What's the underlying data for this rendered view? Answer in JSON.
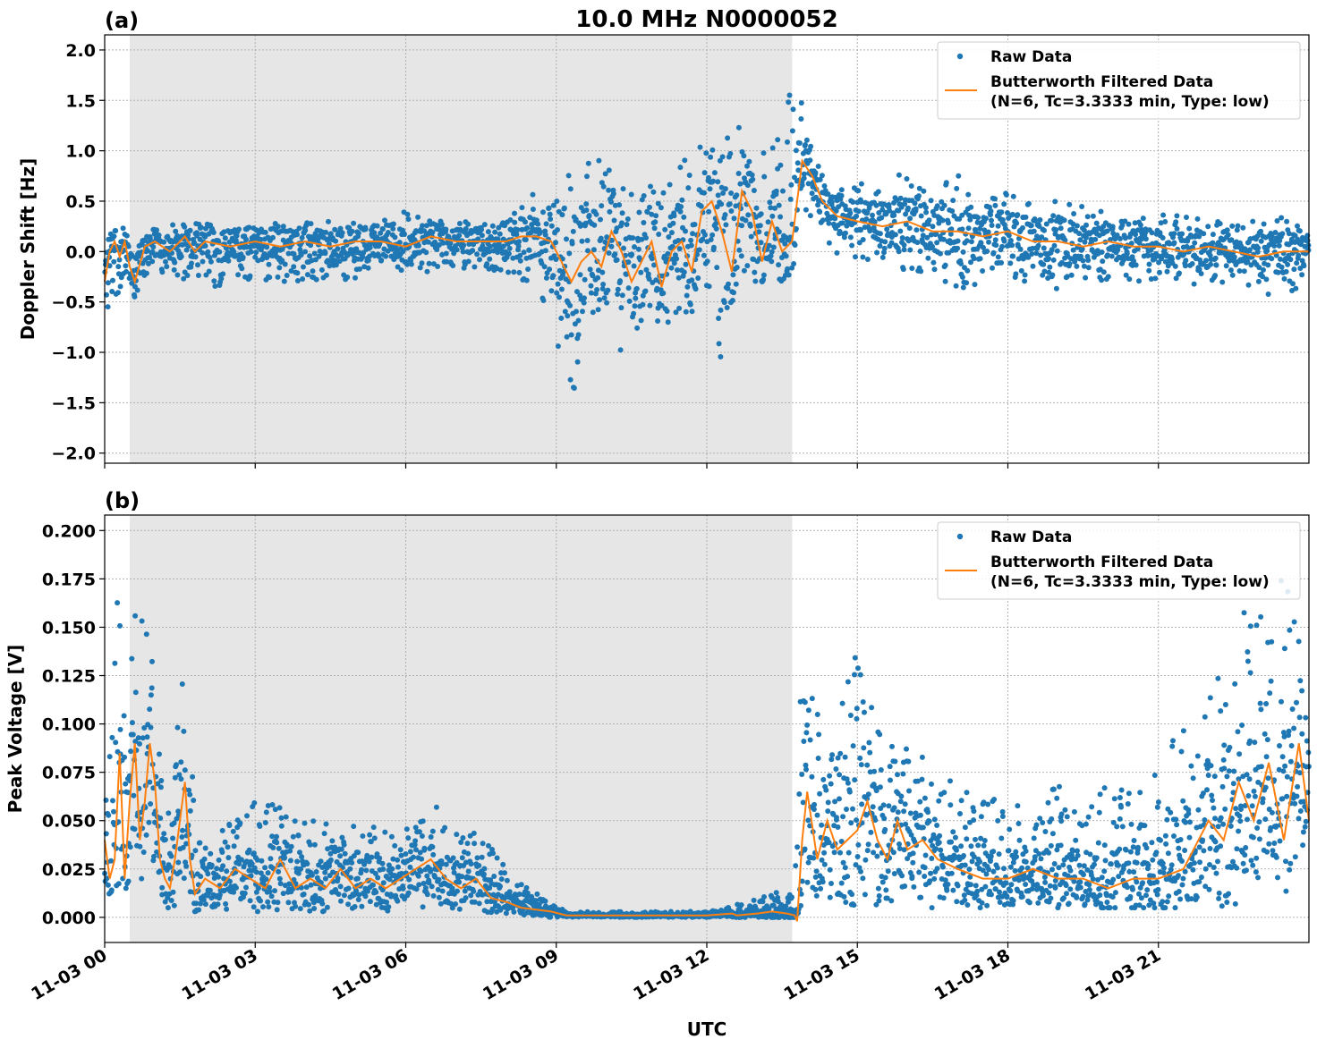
{
  "figure": {
    "title": "10.0 MHz N0000052",
    "xlabel": "UTC",
    "x_ticks": [
      "11-03 00",
      "11-03 03",
      "11-03 06",
      "11-03 09",
      "11-03 12",
      "11-03 15",
      "11-03 18",
      "11-03 21"
    ],
    "shaded_interval_hours": [
      0.5,
      13.7
    ],
    "colors": {
      "raw": "#1f77b4",
      "filtered": "#ff7f0e",
      "shade": "#e6e6e6"
    },
    "legend": {
      "raw_label": "Raw Data",
      "filtered_label_line1": "Butterworth Filtered Data",
      "filtered_label_line2": "(N=6, Tc=3.3333 min, Type: low)",
      "placement": "upper right"
    }
  },
  "chart_data": [
    {
      "type": "scatter",
      "panel_label": "(a)",
      "ylabel": "Doppler Shift [Hz]",
      "xlim_hours": [
        0,
        24
      ],
      "ylim": [
        -2.1,
        2.15
      ],
      "y_ticks": [
        {
          "value": 2.0,
          "label": "2.0"
        },
        {
          "value": 1.5,
          "label": "1.5"
        },
        {
          "value": 1.0,
          "label": "1.0"
        },
        {
          "value": 0.5,
          "label": "0.5"
        },
        {
          "value": 0.0,
          "label": "0.0"
        },
        {
          "value": -0.5,
          "label": "−0.5"
        },
        {
          "value": -1.0,
          "label": "−1.0"
        },
        {
          "value": -1.5,
          "label": "−1.5"
        },
        {
          "value": -2.0,
          "label": "−2.0"
        }
      ],
      "grid": true,
      "series": [
        {
          "name": "Butterworth Filtered Data",
          "kind": "line",
          "x_hours": [
            0,
            0.1,
            0.2,
            0.3,
            0.4,
            0.5,
            0.6,
            0.8,
            1.0,
            1.3,
            1.6,
            1.8,
            2.0,
            2.5,
            3.0,
            3.5,
            4.0,
            4.5,
            5.0,
            5.5,
            6.0,
            6.5,
            7.0,
            7.5,
            8.0,
            8.3,
            8.6,
            8.9,
            9.1,
            9.3,
            9.5,
            9.7,
            9.9,
            10.1,
            10.3,
            10.5,
            10.7,
            10.9,
            11.1,
            11.3,
            11.5,
            11.7,
            11.9,
            12.1,
            12.3,
            12.5,
            12.7,
            12.9,
            13.1,
            13.3,
            13.5,
            13.7,
            13.9,
            14.1,
            14.3,
            14.6,
            15.0,
            15.5,
            16.0,
            16.5,
            17.0,
            17.5,
            18.0,
            18.5,
            19.0,
            19.5,
            20.0,
            20.5,
            21.0,
            21.5,
            22.0,
            22.5,
            23.0,
            23.5,
            24.0
          ],
          "y": [
            -0.3,
            0.0,
            0.1,
            -0.05,
            0.1,
            -0.15,
            -0.3,
            0.05,
            0.1,
            0.0,
            0.15,
            0.0,
            0.1,
            0.05,
            0.1,
            0.05,
            0.1,
            0.05,
            0.1,
            0.1,
            0.05,
            0.15,
            0.1,
            0.1,
            0.1,
            0.15,
            0.15,
            0.1,
            -0.1,
            -0.3,
            -0.1,
            0.0,
            -0.15,
            0.2,
            0.0,
            -0.3,
            -0.1,
            0.1,
            -0.35,
            0.0,
            0.1,
            -0.2,
            0.4,
            0.5,
            0.2,
            -0.2,
            0.6,
            0.4,
            -0.1,
            0.3,
            0.0,
            0.1,
            0.9,
            0.75,
            0.5,
            0.35,
            0.3,
            0.25,
            0.3,
            0.2,
            0.2,
            0.15,
            0.2,
            0.1,
            0.1,
            0.05,
            0.1,
            0.05,
            0.05,
            0.0,
            0.05,
            0.0,
            -0.05,
            0.0,
            0.0
          ]
        },
        {
          "name": "Raw Data",
          "kind": "scatter",
          "x_hours": [
            0.0,
            0.1,
            0.3,
            0.5,
            0.6,
            1.0,
            1.5,
            2.0,
            2.5,
            3.0,
            3.5,
            4.0,
            4.5,
            5.0,
            5.5,
            6.0,
            6.5,
            7.0,
            7.5,
            8.0,
            8.3,
            8.6,
            8.9,
            9.1,
            9.3,
            9.5,
            9.7,
            9.9,
            10.1,
            10.3,
            10.5,
            10.7,
            10.9,
            11.1,
            11.3,
            11.5,
            11.7,
            11.9,
            12.1,
            12.3,
            12.5,
            12.7,
            12.9,
            13.1,
            13.3,
            13.5,
            13.7,
            13.9,
            14.1,
            14.5,
            15.0,
            15.5,
            16.0,
            16.5,
            17.0,
            17.5,
            18.0,
            18.5,
            19.0,
            19.5,
            20.0,
            20.5,
            21.0,
            21.5,
            22.0,
            22.5,
            23.0,
            23.5,
            24.0
          ],
          "y_low": [
            -0.9,
            -0.5,
            -0.4,
            -0.45,
            -0.5,
            -0.2,
            -0.3,
            -0.4,
            -0.3,
            -0.3,
            -0.3,
            -0.3,
            -0.3,
            -0.3,
            -0.2,
            -0.2,
            -0.2,
            -0.15,
            -0.2,
            -0.2,
            -0.3,
            -0.3,
            -0.7,
            -1.2,
            -1.6,
            -1.0,
            -0.8,
            -1.0,
            -0.7,
            -1.1,
            -0.9,
            -0.8,
            -0.7,
            -0.9,
            -0.7,
            -0.6,
            -0.6,
            -0.4,
            -1.0,
            -1.2,
            -0.7,
            -0.4,
            -0.3,
            -0.3,
            -0.2,
            -0.3,
            -0.2,
            0.3,
            0.3,
            0.0,
            -0.1,
            -0.1,
            -0.2,
            -0.2,
            -0.4,
            -0.3,
            -0.3,
            -0.3,
            -0.4,
            -0.3,
            -0.3,
            -0.3,
            -0.3,
            -0.3,
            -0.4,
            -0.3,
            -0.4,
            -0.5,
            -0.3
          ],
          "y_high": [
            0.2,
            0.25,
            0.25,
            0.2,
            0.25,
            0.25,
            0.3,
            0.3,
            0.25,
            0.3,
            0.3,
            0.3,
            0.3,
            0.3,
            0.35,
            0.4,
            0.3,
            0.3,
            0.3,
            0.3,
            0.45,
            0.6,
            0.6,
            0.9,
            1.0,
            1.0,
            0.9,
            1.0,
            0.9,
            0.7,
            0.6,
            0.7,
            0.8,
            0.8,
            0.7,
            1.0,
            1.1,
            1.2,
            1.0,
            1.1,
            1.3,
            1.2,
            1.0,
            0.9,
            1.4,
            1.6,
            1.8,
            1.5,
            1.1,
            0.6,
            0.7,
            0.7,
            0.8,
            0.6,
            0.8,
            0.5,
            0.6,
            0.5,
            0.5,
            0.45,
            0.4,
            0.4,
            0.4,
            0.35,
            0.35,
            0.3,
            0.3,
            0.35,
            0.2
          ]
        }
      ]
    },
    {
      "type": "scatter",
      "panel_label": "(b)",
      "ylabel": "Peak Voltage [V]",
      "xlim_hours": [
        0,
        24
      ],
      "ylim": [
        -0.013,
        0.208
      ],
      "y_ticks": [
        {
          "value": 0.2,
          "label": "0.200"
        },
        {
          "value": 0.175,
          "label": "0.175"
        },
        {
          "value": 0.15,
          "label": "0.150"
        },
        {
          "value": 0.125,
          "label": "0.125"
        },
        {
          "value": 0.1,
          "label": "0.100"
        },
        {
          "value": 0.075,
          "label": "0.075"
        },
        {
          "value": 0.05,
          "label": "0.050"
        },
        {
          "value": 0.025,
          "label": "0.025"
        },
        {
          "value": 0.0,
          "label": "0.000"
        }
      ],
      "grid": true,
      "series": [
        {
          "name": "Butterworth Filtered Data",
          "kind": "line",
          "x_hours": [
            0,
            0.1,
            0.2,
            0.3,
            0.4,
            0.5,
            0.6,
            0.7,
            0.8,
            0.9,
            1.0,
            1.1,
            1.2,
            1.3,
            1.4,
            1.5,
            1.6,
            1.7,
            1.8,
            2.0,
            2.3,
            2.6,
            2.9,
            3.2,
            3.5,
            3.8,
            4.1,
            4.4,
            4.7,
            5.0,
            5.3,
            5.6,
            5.9,
            6.2,
            6.5,
            6.8,
            7.1,
            7.4,
            7.7,
            8.0,
            8.3,
            8.6,
            8.9,
            9.2,
            10.0,
            11.0,
            12.0,
            12.5,
            12.6,
            13.0,
            13.3,
            13.6,
            13.75,
            13.8,
            13.9,
            14.0,
            14.2,
            14.4,
            14.6,
            14.8,
            15.0,
            15.2,
            15.4,
            15.6,
            15.8,
            16.0,
            16.3,
            16.6,
            17.0,
            17.5,
            18.0,
            18.5,
            19.0,
            19.5,
            20.0,
            20.5,
            21.0,
            21.5,
            22.0,
            22.3,
            22.6,
            22.9,
            23.2,
            23.5,
            23.8,
            24.0
          ],
          "y": [
            0.04,
            0.02,
            0.03,
            0.085,
            0.02,
            0.06,
            0.09,
            0.04,
            0.06,
            0.09,
            0.07,
            0.03,
            0.02,
            0.015,
            0.03,
            0.05,
            0.07,
            0.03,
            0.012,
            0.02,
            0.015,
            0.025,
            0.02,
            0.015,
            0.03,
            0.015,
            0.02,
            0.015,
            0.025,
            0.015,
            0.02,
            0.015,
            0.02,
            0.025,
            0.03,
            0.02,
            0.015,
            0.02,
            0.01,
            0.008,
            0.005,
            0.004,
            0.003,
            0.001,
            0.001,
            0.001,
            0.001,
            0.002,
            0.001,
            0.002,
            0.003,
            0.002,
            0.001,
            -0.002,
            0.04,
            0.065,
            0.03,
            0.05,
            0.035,
            0.04,
            0.045,
            0.06,
            0.04,
            0.03,
            0.05,
            0.035,
            0.04,
            0.03,
            0.025,
            0.02,
            0.02,
            0.025,
            0.02,
            0.02,
            0.015,
            0.02,
            0.02,
            0.025,
            0.05,
            0.04,
            0.07,
            0.05,
            0.08,
            0.04,
            0.09,
            0.05
          ]
        },
        {
          "name": "Raw Data",
          "kind": "scatter",
          "x_hours": [
            0.0,
            0.2,
            0.4,
            0.6,
            0.8,
            1.0,
            1.2,
            1.4,
            1.6,
            1.8,
            2.0,
            2.5,
            3.0,
            3.5,
            4.0,
            4.5,
            5.0,
            5.5,
            6.0,
            6.5,
            7.0,
            7.5,
            8.0,
            8.5,
            8.9,
            9.2,
            10.0,
            11.0,
            12.0,
            12.5,
            13.0,
            13.5,
            13.75,
            13.9,
            14.2,
            14.5,
            15.0,
            15.5,
            16.0,
            16.5,
            17.0,
            17.5,
            18.0,
            18.5,
            19.0,
            19.5,
            20.0,
            20.5,
            21.0,
            21.5,
            22.0,
            22.5,
            23.0,
            23.5,
            24.0
          ],
          "y_low": [
            0.01,
            0.015,
            0.015,
            0.015,
            0.015,
            0.015,
            0.005,
            0.005,
            0.005,
            0.003,
            0.005,
            0.004,
            0.003,
            0.003,
            0.003,
            0.003,
            0.003,
            0.003,
            0.003,
            0.003,
            0.003,
            0.003,
            0.002,
            0.001,
            0.0,
            0.0,
            0.0,
            0.0,
            0.0,
            0.0,
            0.0,
            0.0,
            0.0,
            0.005,
            0.005,
            0.005,
            0.005,
            0.005,
            0.005,
            0.005,
            0.005,
            0.005,
            0.005,
            0.005,
            0.005,
            0.005,
            0.005,
            0.005,
            0.005,
            0.005,
            0.005,
            0.005,
            0.005,
            0.005,
            0.005
          ],
          "y_high": [
            0.08,
            0.18,
            0.13,
            0.16,
            0.17,
            0.14,
            0.05,
            0.07,
            0.195,
            0.05,
            0.045,
            0.05,
            0.06,
            0.06,
            0.05,
            0.05,
            0.05,
            0.05,
            0.045,
            0.065,
            0.05,
            0.045,
            0.025,
            0.015,
            0.008,
            0.003,
            0.003,
            0.003,
            0.003,
            0.007,
            0.01,
            0.015,
            0.01,
            0.15,
            0.12,
            0.1,
            0.15,
            0.1,
            0.09,
            0.08,
            0.07,
            0.065,
            0.06,
            0.055,
            0.07,
            0.055,
            0.07,
            0.07,
            0.08,
            0.1,
            0.12,
            0.15,
            0.17,
            0.18,
            0.13
          ]
        }
      ]
    }
  ]
}
